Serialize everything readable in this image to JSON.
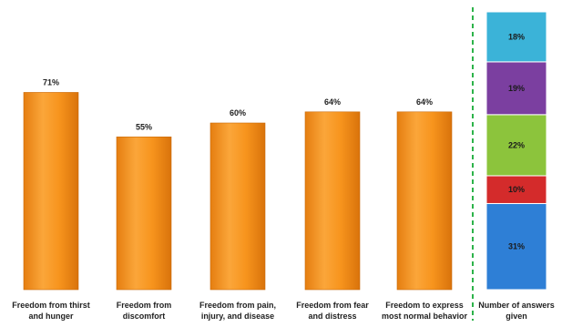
{
  "chart_data": [
    {
      "type": "bar",
      "categories": [
        "Freedom from thirst and hunger",
        "Freedom from discomfort",
        "Freedom from pain, injury, and disease",
        "Freedom from fear and distress",
        "Freedom to express most normal behavior"
      ],
      "category_lines": [
        [
          "Freedom from thirst",
          "and hunger"
        ],
        [
          "Freedom from",
          "discomfort"
        ],
        [
          "Freedom from pain,",
          "injury, and disease"
        ],
        [
          "Freedom from fear",
          "and distress"
        ],
        [
          "Freedom to express",
          "most normal behavior"
        ]
      ],
      "values": [
        71,
        55,
        60,
        64,
        64
      ],
      "value_labels": [
        "71%",
        "55%",
        "60%",
        "64%",
        "64%"
      ],
      "unit": "%",
      "ylim": [
        0,
        100
      ],
      "grid": false,
      "color": "#F7941D"
    },
    {
      "type": "bar",
      "stacked": true,
      "category": "Number of answers given",
      "category_lines": [
        "Number of answers",
        "given"
      ],
      "segments_bottom_to_top": [
        {
          "value": 31,
          "label": "31%",
          "color": "#2E7FD6"
        },
        {
          "value": 10,
          "label": "10%",
          "color": "#D42B2B"
        },
        {
          "value": 22,
          "label": "22%",
          "color": "#8CC43C"
        },
        {
          "value": 19,
          "label": "19%",
          "color": "#7B3FA0"
        },
        {
          "value": 18,
          "label": "18%",
          "color": "#3BB3D8"
        }
      ],
      "separator_color": "#2DB34A"
    }
  ]
}
